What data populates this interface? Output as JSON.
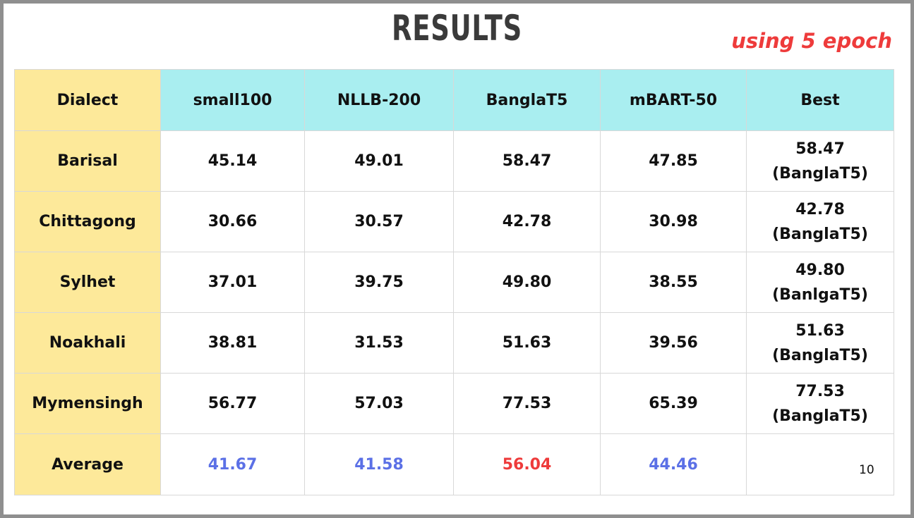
{
  "title": "RESULTS",
  "subtitle": "using 5 epoch",
  "table": {
    "headers": [
      "Dialect",
      "small100",
      "NLLB-200",
      "BanglaT5",
      "mBART-50",
      "Best"
    ],
    "rows": [
      {
        "dialect": "Barisal",
        "small100": "45.14",
        "nllb": "49.01",
        "banglat5": "58.47",
        "mbart": "47.85",
        "best_value": "58.47",
        "best_model": "(BanglaT5)"
      },
      {
        "dialect": "Chittagong",
        "small100": "30.66",
        "nllb": "30.57",
        "banglat5": "42.78",
        "mbart": "30.98",
        "best_value": "42.78",
        "best_model": "(BanglaT5)"
      },
      {
        "dialect": "Sylhet",
        "small100": "37.01",
        "nllb": "39.75",
        "banglat5": "49.80",
        "mbart": "38.55",
        "best_value": "49.80",
        "best_model": "(BanlgaT5)"
      },
      {
        "dialect": "Noakhali",
        "small100": "38.81",
        "nllb": "31.53",
        "banglat5": "51.63",
        "mbart": "39.56",
        "best_value": "51.63",
        "best_model": "(BanglaT5)"
      },
      {
        "dialect": "Mymensingh",
        "small100": "56.77",
        "nllb": "57.03",
        "banglat5": "77.53",
        "mbart": "65.39",
        "best_value": "77.53",
        "best_model": "(BanglaT5)"
      }
    ],
    "average": {
      "label": "Average",
      "small100": "41.67",
      "nllb": "41.58",
      "banglat5": "56.04",
      "mbart": "44.46",
      "best": ""
    }
  },
  "page_number": "10",
  "colors": {
    "dialect_column": "#fde99a",
    "header_row": "#a9eef0",
    "average_highlight_blue": "#5b70e6",
    "average_highlight_red": "#ee3b3b",
    "subtitle": "#ee3b3b"
  }
}
